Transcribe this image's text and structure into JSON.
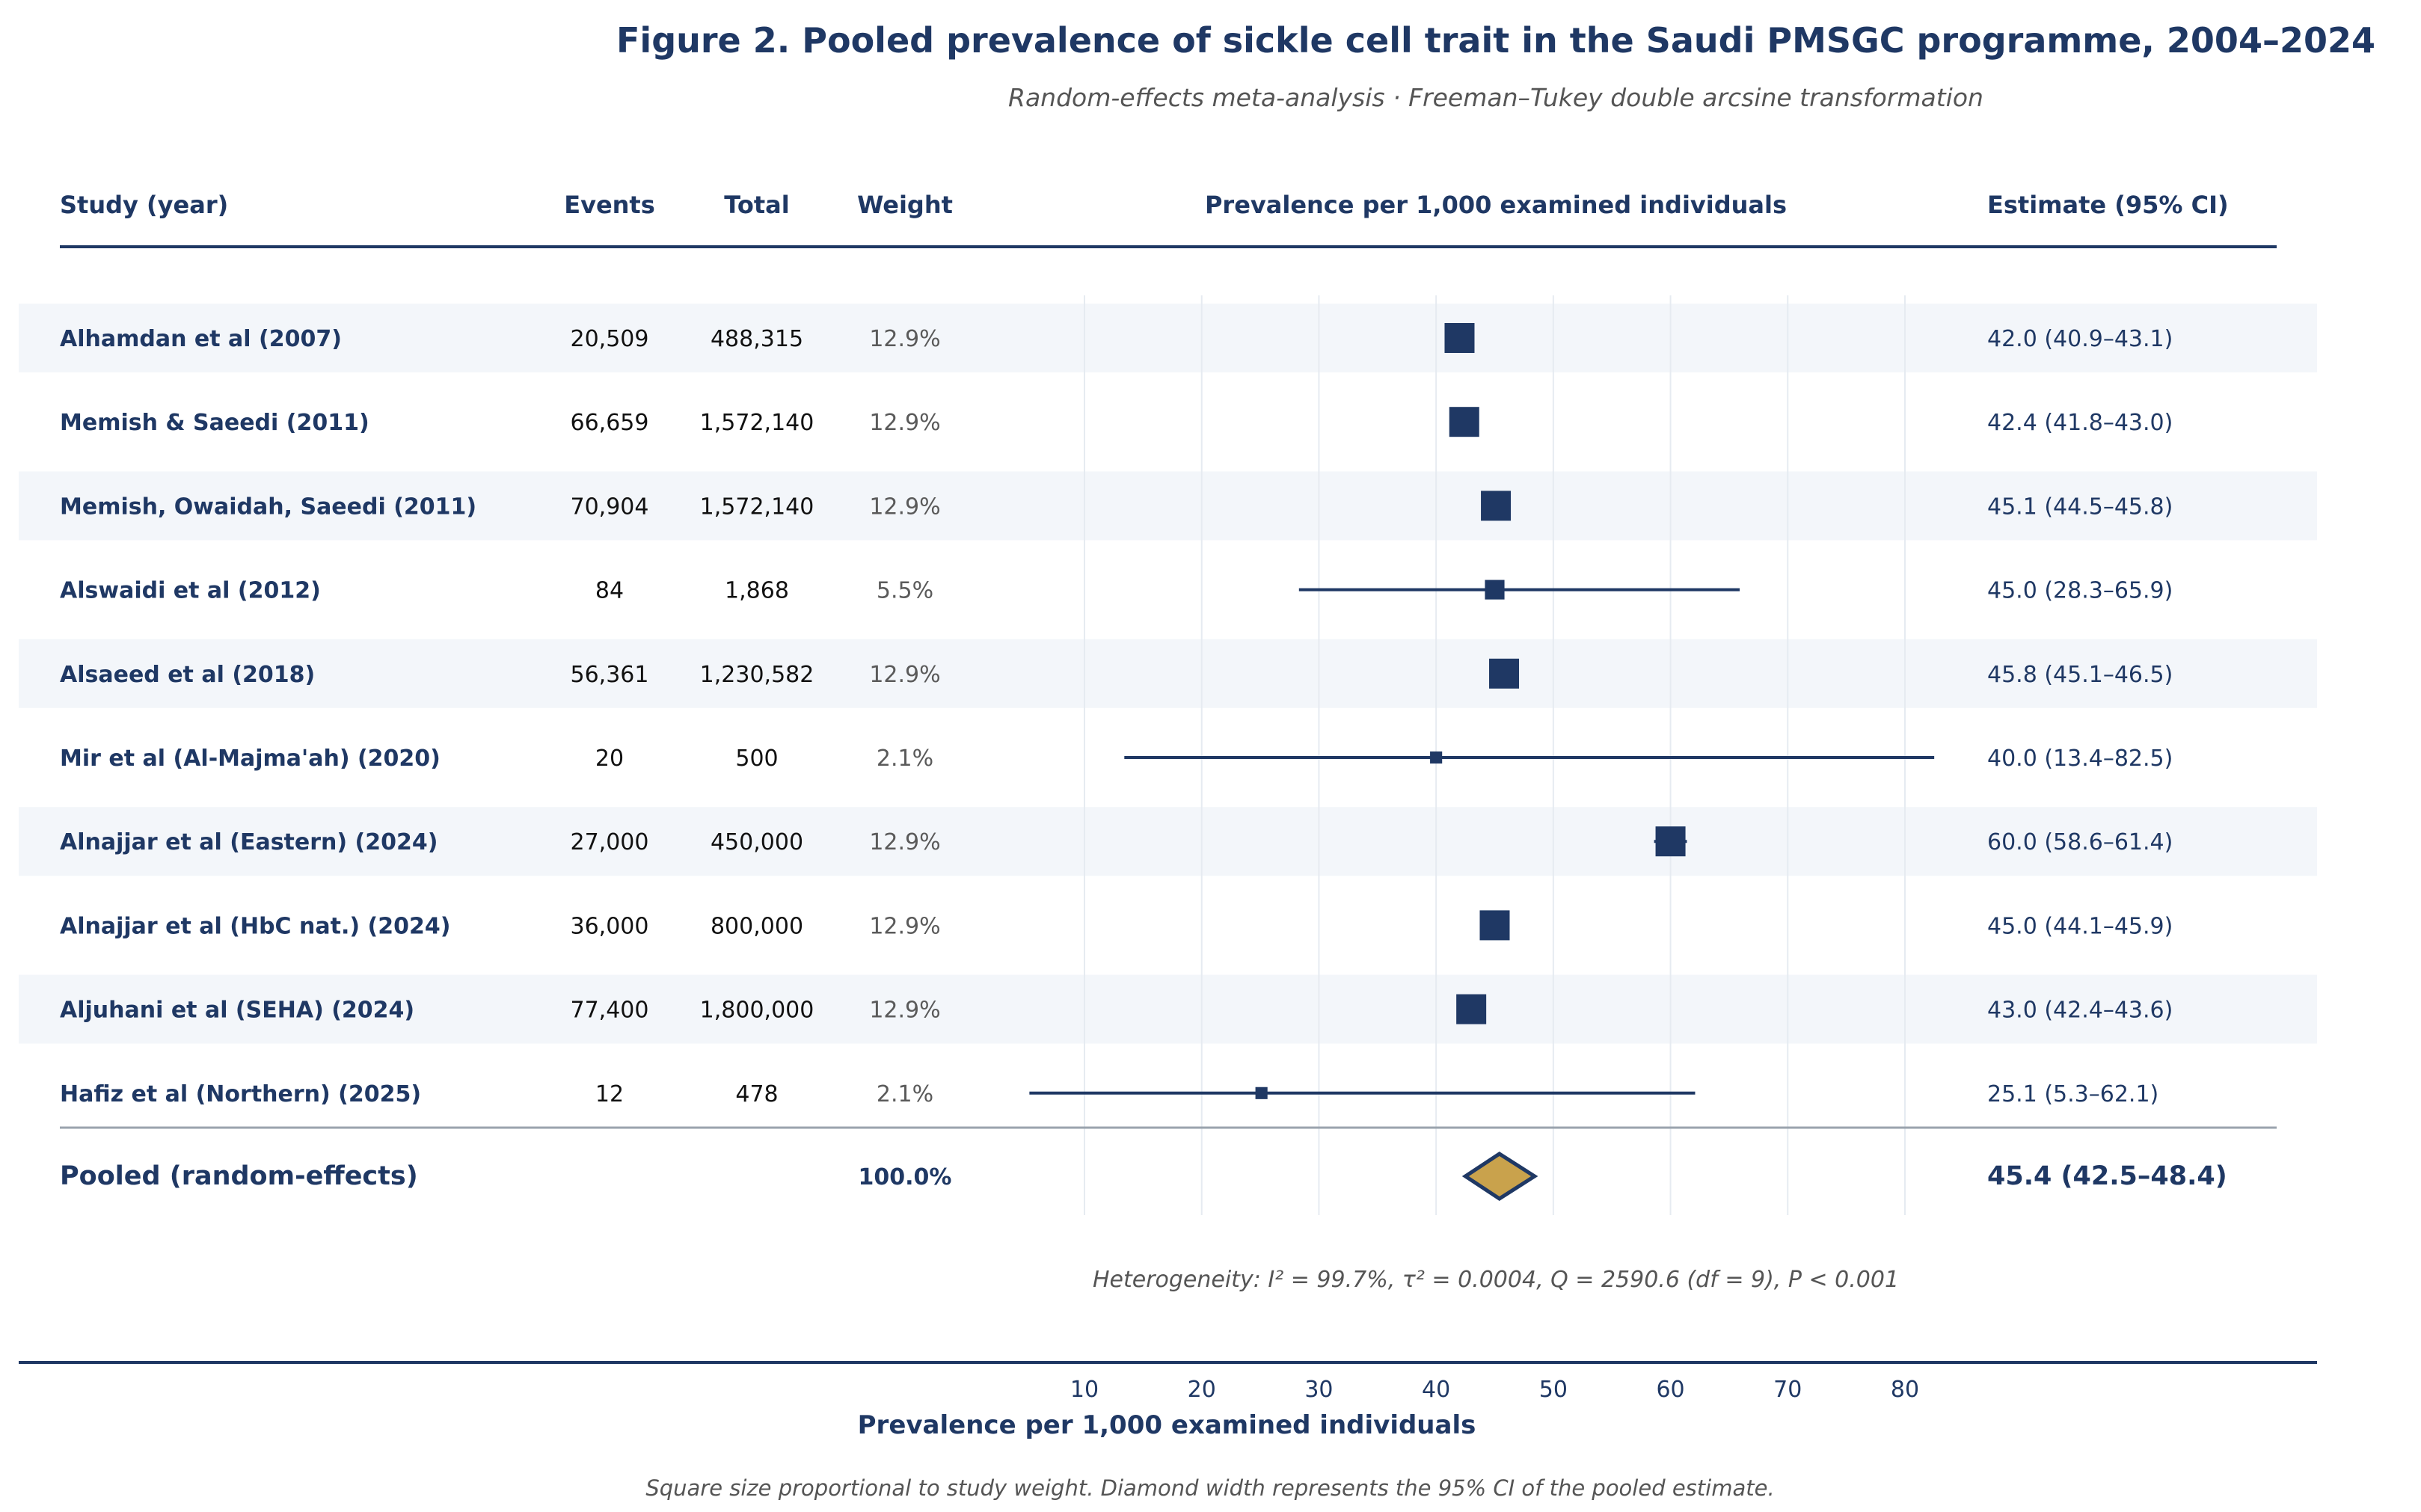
{
  "colors": {
    "navy": "#1f3864",
    "gold": "#c9a24c",
    "band": "#f3f6fa",
    "grid": "#e6ebf1",
    "muted": "#555555",
    "weight_text": "#5a5a5a"
  },
  "chart_data": {
    "type": "forest",
    "title": "Figure 2. Pooled prevalence of sickle cell trait in the Saudi PMSGC programme, 2004–2024",
    "subtitle": "Random-effects meta-analysis · Freeman–Tukey double arcsine transformation",
    "headers": {
      "study": "Study (year)",
      "events": "Events",
      "total": "Total",
      "weight": "Weight",
      "plot": "Prevalence per 1,000 examined individuals",
      "estimate": "Estimate (95% CI)"
    },
    "studies": [
      {
        "study": "Alhamdan et al (2007)",
        "events": "20,509",
        "total": "488,315",
        "weight": "12.9%",
        "weight_value": 12.9,
        "estimate": 42.0,
        "lower": 40.9,
        "upper": 43.1,
        "label": "42.0 (40.9–43.1)"
      },
      {
        "study": "Memish & Saeedi (2011)",
        "events": "66,659",
        "total": "1,572,140",
        "weight": "12.9%",
        "weight_value": 12.9,
        "estimate": 42.4,
        "lower": 41.8,
        "upper": 43.0,
        "label": "42.4 (41.8–43.0)"
      },
      {
        "study": "Memish, Owaidah, Saeedi (2011)",
        "events": "70,904",
        "total": "1,572,140",
        "weight": "12.9%",
        "weight_value": 12.9,
        "estimate": 45.1,
        "lower": 44.5,
        "upper": 45.8,
        "label": "45.1 (44.5–45.8)"
      },
      {
        "study": "Alswaidi et al (2012)",
        "events": "84",
        "total": "1,868",
        "weight": "5.5%",
        "weight_value": 5.5,
        "estimate": 45.0,
        "lower": 28.3,
        "upper": 65.9,
        "label": "45.0 (28.3–65.9)"
      },
      {
        "study": "Alsaeed et al (2018)",
        "events": "56,361",
        "total": "1,230,582",
        "weight": "12.9%",
        "weight_value": 12.9,
        "estimate": 45.8,
        "lower": 45.1,
        "upper": 46.5,
        "label": "45.8 (45.1–46.5)"
      },
      {
        "study": "Mir et al (Al-Majma'ah) (2020)",
        "events": "20",
        "total": "500",
        "weight": "2.1%",
        "weight_value": 2.1,
        "estimate": 40.0,
        "lower": 13.4,
        "upper": 82.5,
        "label": "40.0 (13.4–82.5)"
      },
      {
        "study": "Alnajjar et al (Eastern) (2024)",
        "events": "27,000",
        "total": "450,000",
        "weight": "12.9%",
        "weight_value": 12.9,
        "estimate": 60.0,
        "lower": 58.6,
        "upper": 61.4,
        "label": "60.0 (58.6–61.4)"
      },
      {
        "study": "Alnajjar et al (HbC nat.) (2024)",
        "events": "36,000",
        "total": "800,000",
        "weight": "12.9%",
        "weight_value": 12.9,
        "estimate": 45.0,
        "lower": 44.1,
        "upper": 45.9,
        "label": "45.0 (44.1–45.9)"
      },
      {
        "study": "Aljuhani et al (SEHA) (2024)",
        "events": "77,400",
        "total": "1,800,000",
        "weight": "12.9%",
        "weight_value": 12.9,
        "estimate": 43.0,
        "lower": 42.4,
        "upper": 43.6,
        "label": "43.0 (42.4–43.6)"
      },
      {
        "study": "Hafiz et al (Northern) (2025)",
        "events": "12",
        "total": "478",
        "weight": "2.1%",
        "weight_value": 2.1,
        "estimate": 25.1,
        "lower": 5.3,
        "upper": 62.1,
        "label": "25.1 (5.3–62.1)"
      }
    ],
    "pooled": {
      "label": "Pooled (random-effects)",
      "weight": "100.0%",
      "estimate": 45.4,
      "lower": 42.5,
      "upper": 48.4,
      "text": "45.4 (42.5–48.4)"
    },
    "heterogeneity": "Heterogeneity: I² = 99.7%,  τ² = 0.0004,  Q = 2590.6 (df = 9), P < 0.001",
    "x_ticks": [
      10,
      20,
      30,
      40,
      50,
      60,
      70,
      80
    ],
    "xlim": [
      0,
      90
    ],
    "xlabel": "Prevalence per 1,000 examined individuals",
    "footnote": "Square size proportional to study weight. Diamond width represents the 95% CI of the pooled estimate."
  }
}
